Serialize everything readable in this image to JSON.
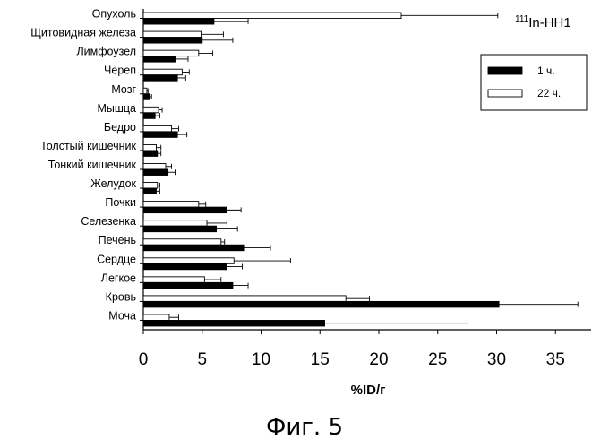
{
  "figure_caption": "Фиг. 5",
  "chart_data": {
    "type": "bar",
    "orientation": "horizontal",
    "title": "111In-HH1",
    "title_superscript": "111",
    "title_main": "In-HH1",
    "xlabel": "%ID/г",
    "ylabel": "",
    "xlim": [
      0,
      38
    ],
    "xticks": [
      0,
      5,
      10,
      15,
      20,
      25,
      30,
      35
    ],
    "grid": false,
    "legend_position": "top-right",
    "categories": [
      "Опухоль",
      "Щитовидная железа",
      "Лимфоузел",
      "Череп",
      "Мозг",
      "Мышца",
      "Бедро",
      "Толстый кишечник",
      "Тонкий кишечник",
      "Желудок",
      "Почки",
      "Селезенка",
      "Печень",
      "Сердце",
      "Легкое",
      "Кровь",
      "Моча"
    ],
    "series": [
      {
        "name": "1 ч.",
        "color": "#000000",
        "values": [
          6.0,
          5.0,
          2.7,
          2.9,
          0.5,
          1.0,
          2.9,
          1.2,
          2.1,
          1.1,
          7.1,
          6.2,
          8.6,
          7.1,
          7.6,
          30.2,
          15.4
        ],
        "errors": [
          2.9,
          2.6,
          1.1,
          0.7,
          0.2,
          0.4,
          0.8,
          0.3,
          0.6,
          0.3,
          1.2,
          1.8,
          2.2,
          1.3,
          1.3,
          6.7,
          12.1
        ]
      },
      {
        "name": "22 ч.",
        "color": "#ffffff",
        "values": [
          21.9,
          4.9,
          4.7,
          3.3,
          0.3,
          1.3,
          2.4,
          1.1,
          1.9,
          1.2,
          4.7,
          5.4,
          6.6,
          7.7,
          5.2,
          17.2,
          2.2
        ],
        "errors": [
          8.2,
          1.9,
          1.2,
          0.6,
          0.1,
          0.3,
          0.6,
          0.4,
          0.5,
          0.2,
          0.6,
          1.7,
          0.3,
          4.8,
          1.4,
          2.0,
          0.8
        ]
      }
    ]
  }
}
